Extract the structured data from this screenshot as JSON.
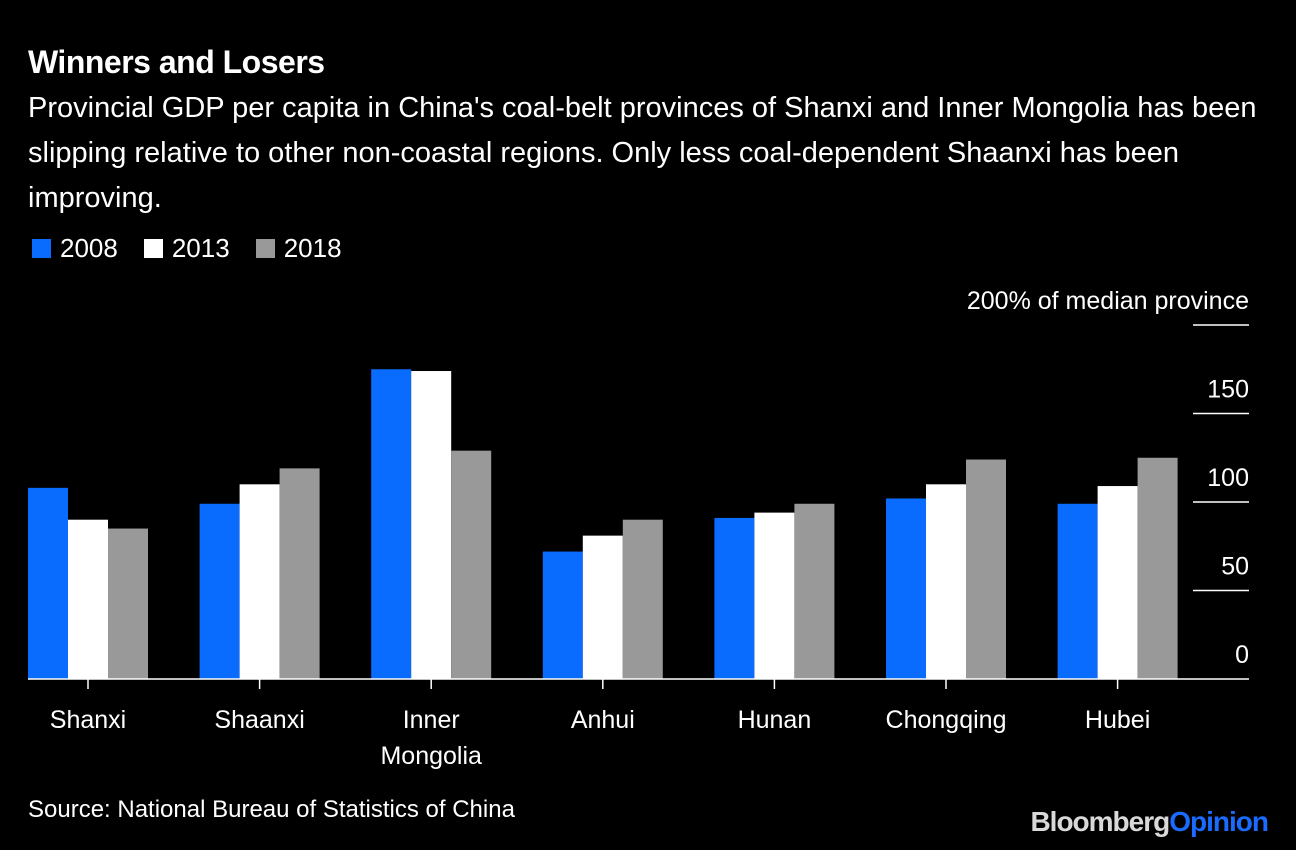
{
  "header": {
    "title": "Winners and Losers",
    "subtitle": "Provincial GDP per capita in China's coal-belt provinces of Shanxi and Inner Mongolia has been slipping relative to other non-coastal regions. Only less coal-dependent Shaanxi has been improving."
  },
  "legend": [
    {
      "label": "2008",
      "color": "#0a6cff"
    },
    {
      "label": "2013",
      "color": "#ffffff"
    },
    {
      "label": "2018",
      "color": "#999999"
    }
  ],
  "chart_data": {
    "type": "bar",
    "title": "Winners and Losers",
    "ylabel": "200% of median province",
    "ylim": [
      0,
      200
    ],
    "yticks": [
      {
        "value": 0,
        "label": "0"
      },
      {
        "value": 50,
        "label": "50"
      },
      {
        "value": 100,
        "label": "100"
      },
      {
        "value": 150,
        "label": "150"
      },
      {
        "value": 200,
        "label": "200% of median province"
      }
    ],
    "categories": [
      {
        "lines": [
          "Shanxi"
        ]
      },
      {
        "lines": [
          "Shaanxi"
        ]
      },
      {
        "lines": [
          "Inner",
          "Mongolia"
        ]
      },
      {
        "lines": [
          "Anhui"
        ]
      },
      {
        "lines": [
          "Hunan"
        ]
      },
      {
        "lines": [
          "Chongqing"
        ]
      },
      {
        "lines": [
          "Hubei"
        ]
      }
    ],
    "series": [
      {
        "name": "2008",
        "color": "#0a6cff",
        "values": [
          108,
          99,
          175,
          72,
          91,
          102,
          99
        ]
      },
      {
        "name": "2013",
        "color": "#ffffff",
        "values": [
          90,
          110,
          174,
          81,
          94,
          110,
          109
        ]
      },
      {
        "name": "2018",
        "color": "#999999",
        "values": [
          85,
          119,
          129,
          90,
          99,
          124,
          125
        ]
      }
    ],
    "legend": "top-left"
  },
  "footer": {
    "source": "Source: National Bureau of Statistics of China",
    "brand_bloomberg": "Bloomberg",
    "brand_opinion": "Opinion"
  }
}
